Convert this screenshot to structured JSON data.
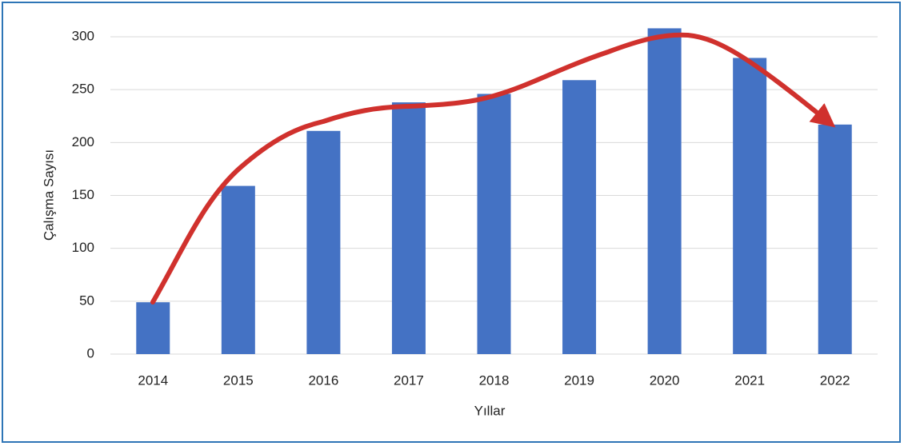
{
  "chart_data": {
    "type": "bar",
    "xlabel": "Yıllar",
    "ylabel": "Çalışma Sayısı",
    "categories": [
      "2014",
      "2015",
      "2016",
      "2017",
      "2018",
      "2019",
      "2020",
      "2021",
      "2022"
    ],
    "values": [
      49,
      159,
      211,
      238,
      246,
      259,
      308,
      280,
      217
    ],
    "color": "#4472c4",
    "ylim": [
      0,
      300
    ],
    "yticks": [
      0,
      50,
      100,
      150,
      200,
      250,
      300
    ],
    "grid": true
  }
}
